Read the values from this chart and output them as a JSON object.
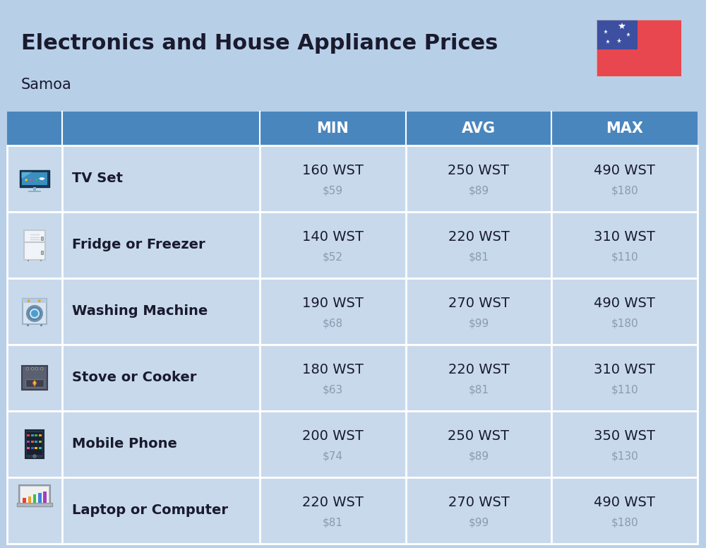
{
  "title": "Electronics and House Appliance Prices",
  "subtitle": "Samoa",
  "background_color": "#b8cfe8",
  "header_color": "#4a86be",
  "header_text_color": "#ffffff",
  "text_color_primary": "#1a1a2e",
  "text_color_secondary": "#8a9baf",
  "columns": [
    "MIN",
    "AVG",
    "MAX"
  ],
  "items": [
    {
      "name": "TV Set",
      "min_wst": "160 WST",
      "min_usd": "$59",
      "avg_wst": "250 WST",
      "avg_usd": "$89",
      "max_wst": "490 WST",
      "max_usd": "$180"
    },
    {
      "name": "Fridge or Freezer",
      "min_wst": "140 WST",
      "min_usd": "$52",
      "avg_wst": "220 WST",
      "avg_usd": "$81",
      "max_wst": "310 WST",
      "max_usd": "$110"
    },
    {
      "name": "Washing Machine",
      "min_wst": "190 WST",
      "min_usd": "$68",
      "avg_wst": "270 WST",
      "avg_usd": "$99",
      "max_wst": "490 WST",
      "max_usd": "$180"
    },
    {
      "name": "Stove or Cooker",
      "min_wst": "180 WST",
      "min_usd": "$63",
      "avg_wst": "220 WST",
      "avg_usd": "$81",
      "max_wst": "310 WST",
      "max_usd": "$110"
    },
    {
      "name": "Mobile Phone",
      "min_wst": "200 WST",
      "min_usd": "$74",
      "avg_wst": "250 WST",
      "avg_usd": "$89",
      "max_wst": "350 WST",
      "max_usd": "$130"
    },
    {
      "name": "Laptop or Computer",
      "min_wst": "220 WST",
      "min_usd": "$81",
      "avg_wst": "270 WST",
      "avg_usd": "$99",
      "max_wst": "490 WST",
      "max_usd": "$180"
    }
  ],
  "flag_red": "#E8474F",
  "flag_blue": "#3D4FA0",
  "flag_white": "#FFFFFF"
}
